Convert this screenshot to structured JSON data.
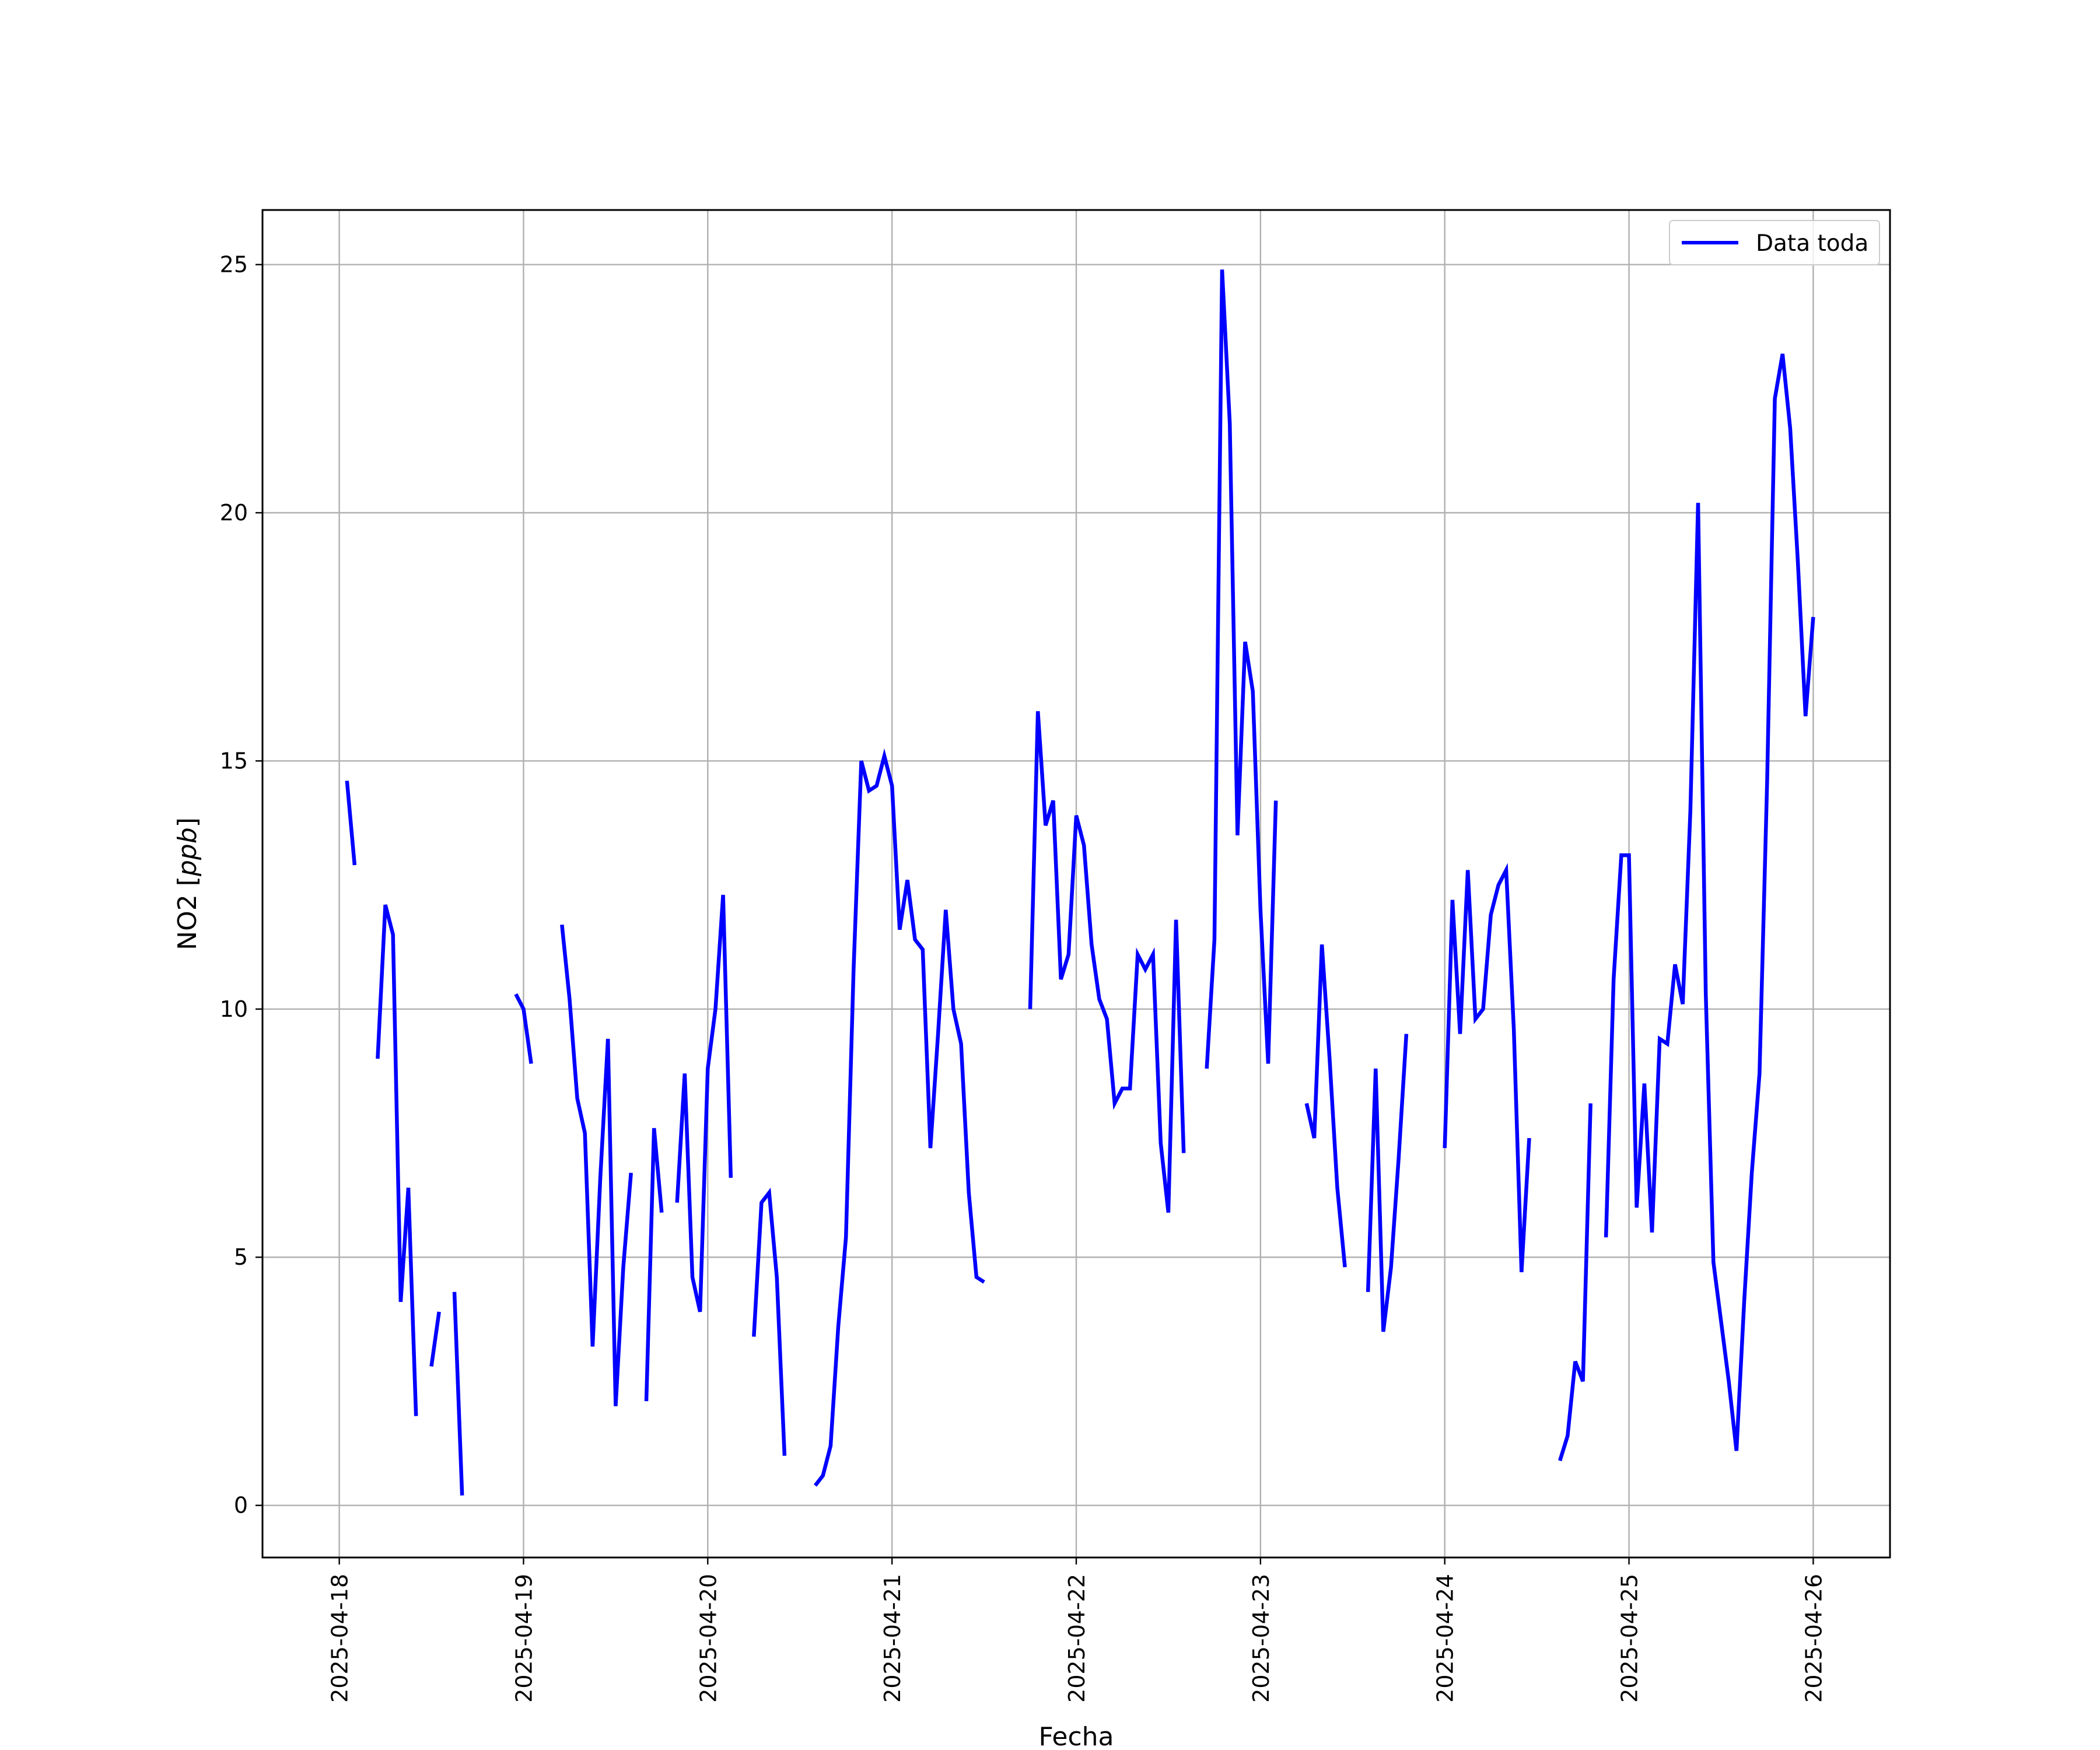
{
  "chart_data": {
    "type": "line",
    "title": "",
    "xlabel": "Fecha",
    "ylabel": "NO2 [ppb]",
    "ylabel_main": "NO2 [",
    "ylabel_unit": "ppb",
    "ylabel_close": "]",
    "xlim": [
      "2025-04-17 14:00",
      "2025-04-26 10:00"
    ],
    "ylim": [
      -1.05,
      26.1
    ],
    "grid": true,
    "legend_position": "upper-right",
    "x_ticks": [
      "2025-04-18",
      "2025-04-19",
      "2025-04-20",
      "2025-04-21",
      "2025-04-22",
      "2025-04-23",
      "2025-04-24",
      "2025-04-25",
      "2025-04-26"
    ],
    "y_ticks": [
      0,
      5,
      10,
      15,
      20,
      25
    ],
    "series": [
      {
        "name": "Data toda",
        "color": "#0000ff",
        "segments": [
          [
            [
              "2025-04-18 01:00",
              14.6
            ],
            [
              "2025-04-18 02:00",
              12.9
            ]
          ],
          [
            [
              "2025-04-18 05:00",
              9.0
            ],
            [
              "2025-04-18 06:00",
              12.1
            ],
            [
              "2025-04-18 07:00",
              11.5
            ],
            [
              "2025-04-18 08:00",
              4.1
            ],
            [
              "2025-04-18 09:00",
              6.4
            ],
            [
              "2025-04-18 10:00",
              1.8
            ]
          ],
          [
            [
              "2025-04-18 12:00",
              2.8
            ],
            [
              "2025-04-18 13:00",
              3.9
            ]
          ],
          [
            [
              "2025-04-18 15:00",
              4.3
            ],
            [
              "2025-04-18 16:00",
              0.2
            ]
          ],
          [
            [
              "2025-04-18 23:00",
              10.3
            ],
            [
              "2025-04-19 00:00",
              10.0
            ],
            [
              "2025-04-19 01:00",
              8.9
            ]
          ],
          [
            [
              "2025-04-19 05:00",
              11.7
            ],
            [
              "2025-04-19 06:00",
              10.2
            ],
            [
              "2025-04-19 07:00",
              8.2
            ],
            [
              "2025-04-19 08:00",
              7.5
            ],
            [
              "2025-04-19 09:00",
              3.2
            ],
            [
              "2025-04-19 10:00",
              6.6
            ],
            [
              "2025-04-19 11:00",
              9.4
            ],
            [
              "2025-04-19 12:00",
              2.0
            ],
            [
              "2025-04-19 13:00",
              4.8
            ],
            [
              "2025-04-19 14:00",
              6.7
            ]
          ],
          [
            [
              "2025-04-19 16:00",
              2.1
            ],
            [
              "2025-04-19 17:00",
              7.6
            ],
            [
              "2025-04-19 18:00",
              5.9
            ]
          ],
          [
            [
              "2025-04-19 20:00",
              6.1
            ],
            [
              "2025-04-19 21:00",
              8.7
            ],
            [
              "2025-04-19 22:00",
              4.6
            ],
            [
              "2025-04-19 23:00",
              3.9
            ],
            [
              "2025-04-20 00:00",
              8.8
            ],
            [
              "2025-04-20 01:00",
              10.0
            ],
            [
              "2025-04-20 02:00",
              12.3
            ],
            [
              "2025-04-20 03:00",
              6.6
            ]
          ],
          [
            [
              "2025-04-20 06:00",
              3.4
            ],
            [
              "2025-04-20 07:00",
              6.1
            ],
            [
              "2025-04-20 08:00",
              6.3
            ],
            [
              "2025-04-20 09:00",
              4.6
            ],
            [
              "2025-04-20 10:00",
              1.0
            ]
          ],
          [
            [
              "2025-04-20 14:00",
              0.4
            ],
            [
              "2025-04-20 15:00",
              0.6
            ],
            [
              "2025-04-20 16:00",
              1.2
            ],
            [
              "2025-04-20 17:00",
              3.6
            ],
            [
              "2025-04-20 18:00",
              5.4
            ],
            [
              "2025-04-20 19:00",
              10.8
            ],
            [
              "2025-04-20 20:00",
              15.0
            ],
            [
              "2025-04-20 21:00",
              14.4
            ],
            [
              "2025-04-20 22:00",
              14.5
            ],
            [
              "2025-04-20 23:00",
              15.1
            ],
            [
              "2025-04-21 00:00",
              14.5
            ],
            [
              "2025-04-21 01:00",
              11.6
            ],
            [
              "2025-04-21 02:00",
              12.6
            ],
            [
              "2025-04-21 03:00",
              11.4
            ],
            [
              "2025-04-21 04:00",
              11.2
            ],
            [
              "2025-04-21 05:00",
              7.2
            ],
            [
              "2025-04-21 06:00",
              9.5
            ],
            [
              "2025-04-21 07:00",
              12.0
            ],
            [
              "2025-04-21 08:00",
              10.0
            ],
            [
              "2025-04-21 09:00",
              9.3
            ],
            [
              "2025-04-21 10:00",
              6.3
            ],
            [
              "2025-04-21 11:00",
              4.6
            ],
            [
              "2025-04-21 12:00",
              4.5
            ]
          ],
          [
            [
              "2025-04-21 18:00",
              10.0
            ],
            [
              "2025-04-21 19:00",
              16.0
            ],
            [
              "2025-04-21 20:00",
              13.7
            ],
            [
              "2025-04-21 21:00",
              14.2
            ],
            [
              "2025-04-21 22:00",
              10.6
            ],
            [
              "2025-04-21 23:00",
              11.1
            ],
            [
              "2025-04-22 00:00",
              13.9
            ],
            [
              "2025-04-22 01:00",
              13.3
            ],
            [
              "2025-04-22 02:00",
              11.3
            ],
            [
              "2025-04-22 03:00",
              10.2
            ],
            [
              "2025-04-22 04:00",
              9.8
            ],
            [
              "2025-04-22 05:00",
              8.1
            ],
            [
              "2025-04-22 06:00",
              8.4
            ],
            [
              "2025-04-22 07:00",
              8.4
            ],
            [
              "2025-04-22 08:00",
              11.1
            ],
            [
              "2025-04-22 09:00",
              10.8
            ],
            [
              "2025-04-22 10:00",
              11.1
            ],
            [
              "2025-04-22 11:00",
              7.3
            ],
            [
              "2025-04-22 12:00",
              5.9
            ],
            [
              "2025-04-22 13:00",
              11.8
            ],
            [
              "2025-04-22 14:00",
              7.1
            ]
          ],
          [
            [
              "2025-04-22 17:00",
              8.8
            ],
            [
              "2025-04-22 18:00",
              11.4
            ],
            [
              "2025-04-22 19:00",
              24.9
            ],
            [
              "2025-04-22 20:00",
              21.8
            ],
            [
              "2025-04-22 21:00",
              13.5
            ],
            [
              "2025-04-22 22:00",
              17.4
            ],
            [
              "2025-04-22 23:00",
              16.4
            ],
            [
              "2025-04-23 00:00",
              12.0
            ],
            [
              "2025-04-23 01:00",
              8.9
            ],
            [
              "2025-04-23 02:00",
              14.2
            ]
          ],
          [
            [
              "2025-04-23 06:00",
              8.1
            ],
            [
              "2025-04-23 07:00",
              7.4
            ],
            [
              "2025-04-23 08:00",
              11.3
            ],
            [
              "2025-04-23 09:00",
              9.0
            ],
            [
              "2025-04-23 10:00",
              6.4
            ],
            [
              "2025-04-23 11:00",
              4.8
            ]
          ],
          [
            [
              "2025-04-23 14:00",
              4.3
            ],
            [
              "2025-04-23 15:00",
              8.8
            ],
            [
              "2025-04-23 16:00",
              3.5
            ],
            [
              "2025-04-23 17:00",
              4.8
            ],
            [
              "2025-04-23 18:00",
              7.0
            ],
            [
              "2025-04-23 19:00",
              9.5
            ]
          ],
          [
            [
              "2025-04-24 00:00",
              7.2
            ],
            [
              "2025-04-24 01:00",
              12.2
            ],
            [
              "2025-04-24 02:00",
              9.5
            ],
            [
              "2025-04-24 03:00",
              12.8
            ],
            [
              "2025-04-24 04:00",
              9.8
            ],
            [
              "2025-04-24 05:00",
              10.0
            ],
            [
              "2025-04-24 06:00",
              11.9
            ],
            [
              "2025-04-24 07:00",
              12.5
            ],
            [
              "2025-04-24 08:00",
              12.8
            ],
            [
              "2025-04-24 09:00",
              9.6
            ],
            [
              "2025-04-24 10:00",
              4.7
            ],
            [
              "2025-04-24 11:00",
              7.4
            ]
          ],
          [
            [
              "2025-04-24 15:00",
              0.9
            ],
            [
              "2025-04-24 16:00",
              1.4
            ],
            [
              "2025-04-24 17:00",
              2.9
            ],
            [
              "2025-04-24 18:00",
              2.5
            ],
            [
              "2025-04-24 19:00",
              8.1
            ]
          ],
          [
            [
              "2025-04-24 21:00",
              5.4
            ],
            [
              "2025-04-24 22:00",
              10.6
            ],
            [
              "2025-04-24 23:00",
              13.1
            ],
            [
              "2025-04-25 00:00",
              13.1
            ],
            [
              "2025-04-25 01:00",
              6.0
            ],
            [
              "2025-04-25 02:00",
              8.5
            ],
            [
              "2025-04-25 03:00",
              5.5
            ],
            [
              "2025-04-25 04:00",
              9.4
            ],
            [
              "2025-04-25 05:00",
              9.3
            ],
            [
              "2025-04-25 06:00",
              10.9
            ],
            [
              "2025-04-25 07:00",
              10.1
            ],
            [
              "2025-04-25 08:00",
              14.0
            ],
            [
              "2025-04-25 09:00",
              20.2
            ],
            [
              "2025-04-25 10:00",
              10.3
            ],
            [
              "2025-04-25 11:00",
              4.9
            ],
            [
              "2025-04-25 12:00",
              3.7
            ],
            [
              "2025-04-25 13:00",
              2.5
            ],
            [
              "2025-04-25 14:00",
              1.1
            ],
            [
              "2025-04-25 15:00",
              4.1
            ],
            [
              "2025-04-25 16:00",
              6.7
            ],
            [
              "2025-04-25 17:00",
              8.7
            ],
            [
              "2025-04-25 18:00",
              14.6
            ],
            [
              "2025-04-25 19:00",
              22.3
            ],
            [
              "2025-04-25 20:00",
              23.2
            ],
            [
              "2025-04-25 21:00",
              21.7
            ],
            [
              "2025-04-25 22:00",
              19.0
            ],
            [
              "2025-04-25 23:00",
              15.9
            ],
            [
              "2025-04-26 00:00",
              17.9
            ]
          ]
        ]
      }
    ]
  }
}
